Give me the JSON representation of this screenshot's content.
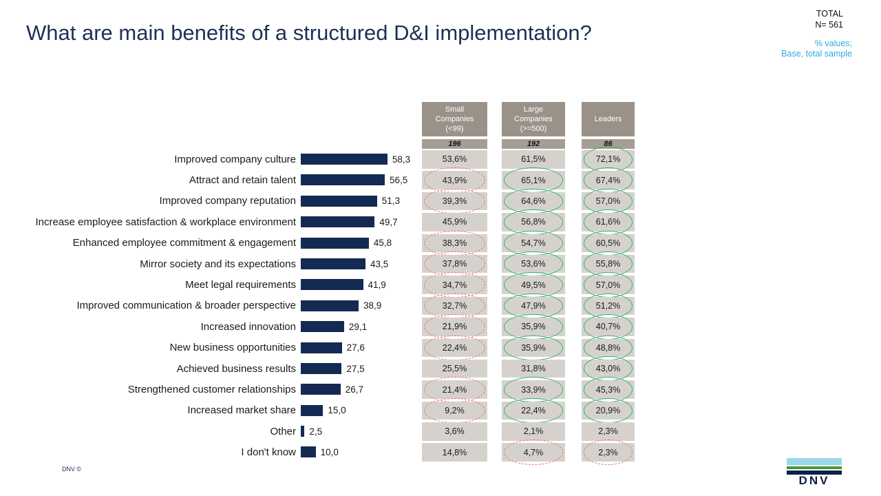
{
  "title": "What are main benefits of a structured D&I implementation?",
  "meta": {
    "total_label": "TOTAL",
    "total_n": "N= 561",
    "note_line1": "% values;",
    "note_line2": "Base, total sample"
  },
  "columns": [
    {
      "title": "Small Companies (<99)",
      "n": "196"
    },
    {
      "title": "Large Companies (>=500)",
      "n": "192"
    },
    {
      "title": "Leaders",
      "n": "86"
    }
  ],
  "colors": {
    "bar_navy": "#152a52",
    "title_navy": "#1f3056",
    "note_blue": "#29abe2",
    "header_taupe": "#9a9289",
    "count_taupe": "#a39d94",
    "cell_gray": "#d5d2cd",
    "ellipse_green": "#35b06e",
    "ellipse_red": "#ef6a6e",
    "logo_lightblue": "#9bd7e9",
    "logo_green": "#3f9c35",
    "logo_navy": "#0f204b"
  },
  "chart_data": {
    "type": "bar",
    "orientation": "horizontal",
    "title": "What are main benefits of a structured D&I implementation?",
    "xlim": [
      0,
      62
    ],
    "grid": false,
    "legend_position": "column-headers-top",
    "categories": [
      "Improved company culture",
      "Attract and retain talent",
      "Improved company reputation",
      "Increase employee satisfaction & workplace environment",
      "Enhanced employee commitment & engagement",
      "Mirror society and its expectations",
      "Meet legal requirements",
      "Improved communication & broader perspective",
      "Increased innovation",
      "New business opportunities",
      "Achieved business results",
      "Strengthened customer relationships",
      "Increased market share",
      "Other",
      "I don't know"
    ],
    "series": [
      {
        "name": "Total",
        "n": 561,
        "values": [
          58.3,
          56.5,
          51.3,
          49.7,
          45.8,
          43.5,
          41.9,
          38.9,
          29.1,
          27.6,
          27.5,
          26.7,
          15.0,
          2.5,
          10.0
        ]
      },
      {
        "name": "Small Companies (<99)",
        "n": 196,
        "values": [
          53.6,
          43.9,
          39.3,
          45.9,
          38.3,
          37.8,
          34.7,
          32.7,
          21.9,
          22.4,
          25.5,
          21.4,
          9.2,
          3.6,
          14.8
        ]
      },
      {
        "name": "Large Companies (>=500)",
        "n": 192,
        "values": [
          61.5,
          65.1,
          64.6,
          56.8,
          54.7,
          53.6,
          49.5,
          47.9,
          35.9,
          35.9,
          31.8,
          33.9,
          22.4,
          2.1,
          4.7
        ]
      },
      {
        "name": "Leaders",
        "n": 86,
        "values": [
          72.1,
          67.4,
          57.0,
          61.6,
          60.5,
          55.8,
          57.0,
          51.2,
          40.7,
          48.8,
          43.0,
          45.3,
          20.9,
          2.3,
          2.3
        ]
      }
    ],
    "rows": [
      {
        "label": "Improved company culture",
        "total": "58,3",
        "total_value": 58.3,
        "small": "53,6%",
        "small_mark": "none",
        "large": "61,5%",
        "large_mark": "none",
        "leaders": "72,1%",
        "leaders_mark": "green"
      },
      {
        "label": "Attract and retain talent",
        "total": "56,5",
        "total_value": 56.5,
        "small": "43,9%",
        "small_mark": "red",
        "large": "65,1%",
        "large_mark": "green",
        "leaders": "67,4%",
        "leaders_mark": "green"
      },
      {
        "label": "Improved company reputation",
        "total": "51,3",
        "total_value": 51.3,
        "small": "39,3%",
        "small_mark": "red",
        "large": "64,6%",
        "large_mark": "green",
        "leaders": "57,0%",
        "leaders_mark": "green"
      },
      {
        "label": "Increase employee satisfaction & workplace environment",
        "total": "49,7",
        "total_value": 49.7,
        "small": "45,9%",
        "small_mark": "none",
        "large": "56,8%",
        "large_mark": "green",
        "leaders": "61,6%",
        "leaders_mark": "green"
      },
      {
        "label": "Enhanced employee commitment & engagement",
        "total": "45,8",
        "total_value": 45.8,
        "small": "38,3%",
        "small_mark": "red",
        "large": "54,7%",
        "large_mark": "green",
        "leaders": "60,5%",
        "leaders_mark": "green"
      },
      {
        "label": "Mirror society and its expectations",
        "total": "43,5",
        "total_value": 43.5,
        "small": "37,8%",
        "small_mark": "red",
        "large": "53,6%",
        "large_mark": "green",
        "leaders": "55,8%",
        "leaders_mark": "green"
      },
      {
        "label": "Meet legal requirements",
        "total": "41,9",
        "total_value": 41.9,
        "small": "34,7%",
        "small_mark": "red",
        "large": "49,5%",
        "large_mark": "green",
        "leaders": "57,0%",
        "leaders_mark": "green"
      },
      {
        "label": "Improved communication & broader perspective",
        "total": "38,9",
        "total_value": 38.9,
        "small": "32,7%",
        "small_mark": "red",
        "large": "47,9%",
        "large_mark": "green",
        "leaders": "51,2%",
        "leaders_mark": "green"
      },
      {
        "label": "Increased innovation",
        "total": "29,1",
        "total_value": 29.1,
        "small": "21,9%",
        "small_mark": "red",
        "large": "35,9%",
        "large_mark": "green",
        "leaders": "40,7%",
        "leaders_mark": "green"
      },
      {
        "label": "New business opportunities",
        "total": "27,6",
        "total_value": 27.6,
        "small": "22,4%",
        "small_mark": "red",
        "large": "35,9%",
        "large_mark": "green",
        "leaders": "48,8%",
        "leaders_mark": "green"
      },
      {
        "label": "Achieved business results",
        "total": "27,5",
        "total_value": 27.5,
        "small": "25,5%",
        "small_mark": "none",
        "large": "31,8%",
        "large_mark": "none",
        "leaders": "43,0%",
        "leaders_mark": "green"
      },
      {
        "label": "Strengthened customer relationships",
        "total": "26,7",
        "total_value": 26.7,
        "small": "21,4%",
        "small_mark": "red",
        "large": "33,9%",
        "large_mark": "green",
        "leaders": "45,3%",
        "leaders_mark": "green"
      },
      {
        "label": "Increased market share",
        "total": "15,0",
        "total_value": 15.0,
        "small": "9,2%",
        "small_mark": "red",
        "large": "22,4%",
        "large_mark": "green",
        "leaders": "20,9%",
        "leaders_mark": "green"
      },
      {
        "label": "Other",
        "total": "2,5",
        "total_value": 2.5,
        "small": "3,6%",
        "small_mark": "none",
        "large": "2,1%",
        "large_mark": "none",
        "leaders": "2,3%",
        "leaders_mark": "none"
      },
      {
        "label": "I don't know",
        "total": "10,0",
        "total_value": 10.0,
        "small": "14,8%",
        "small_mark": "none",
        "large": "4,7%",
        "large_mark": "red",
        "leaders": "2,3%",
        "leaders_mark": "red"
      }
    ]
  },
  "footer": {
    "copyright": "DNV ©",
    "logo_text": "DNV"
  }
}
